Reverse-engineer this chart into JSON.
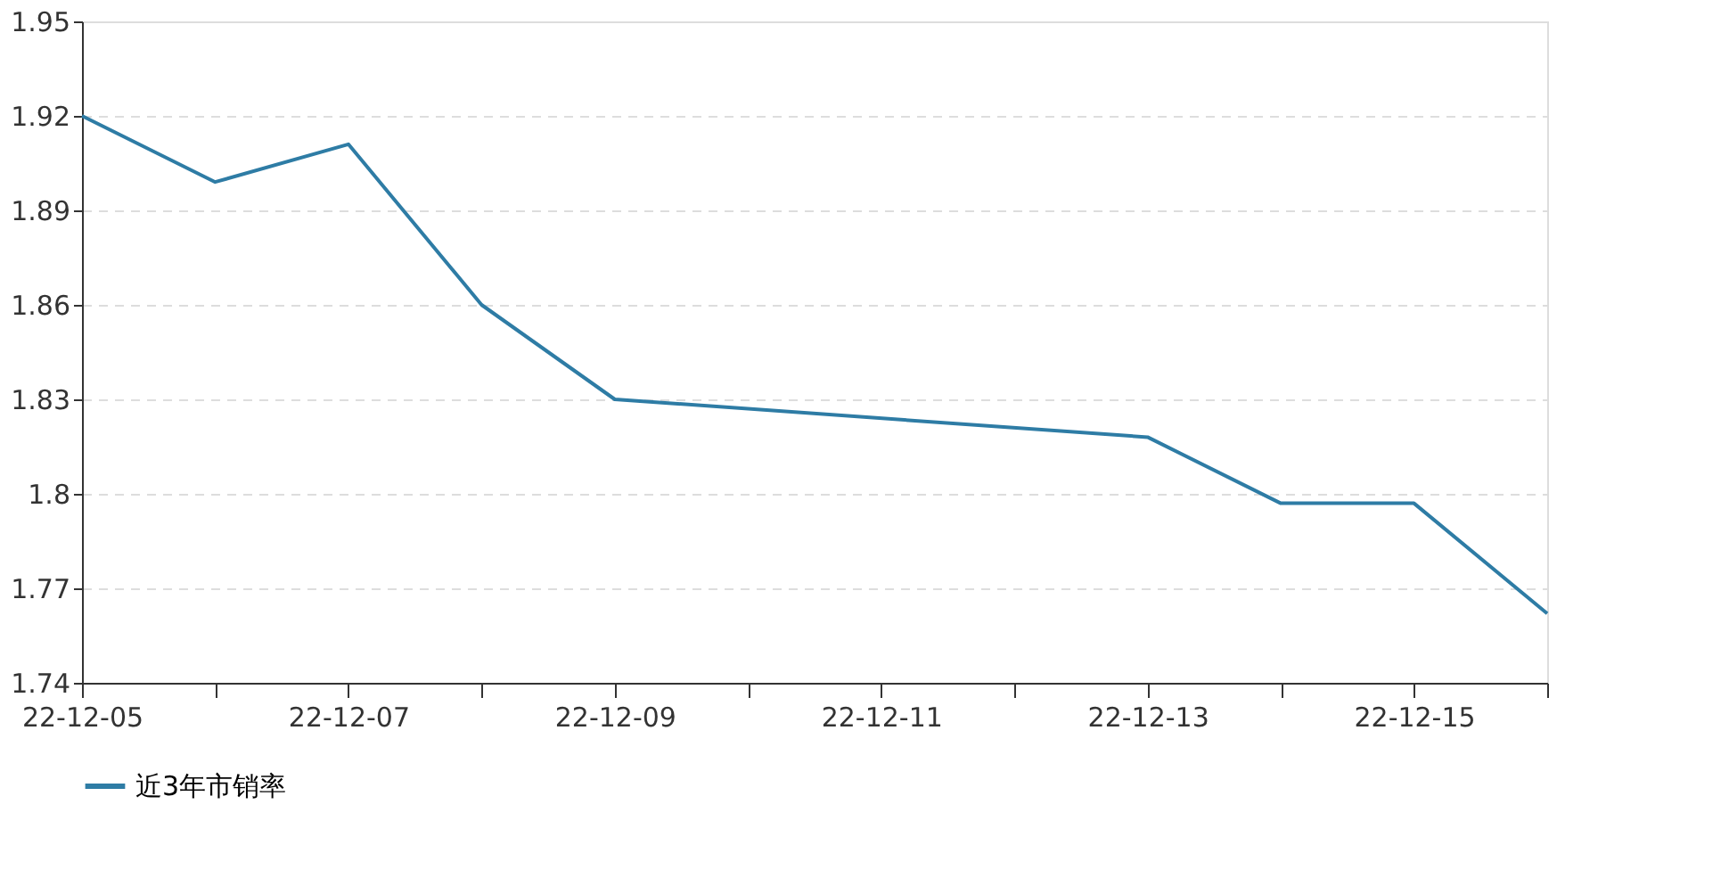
{
  "chart_data": {
    "type": "line",
    "categories": [
      "22-12-05",
      null,
      "22-12-07",
      null,
      "22-12-09",
      null,
      "22-12-11",
      null,
      "22-12-13",
      null,
      "22-12-15",
      null
    ],
    "series": [
      {
        "name": "近3年市销率",
        "color": "#2e7ca5",
        "values": [
          1.92,
          1.899,
          1.911,
          1.86,
          1.83,
          null,
          null,
          null,
          1.818,
          1.797,
          1.797,
          1.762
        ]
      }
    ],
    "ylim": [
      1.74,
      1.95
    ],
    "yticks": [
      1.74,
      1.77,
      1.8,
      1.83,
      1.86,
      1.89,
      1.92,
      1.95
    ],
    "grid": "y",
    "legend": "bottom",
    "marker": "none",
    "line_style": "solid"
  }
}
